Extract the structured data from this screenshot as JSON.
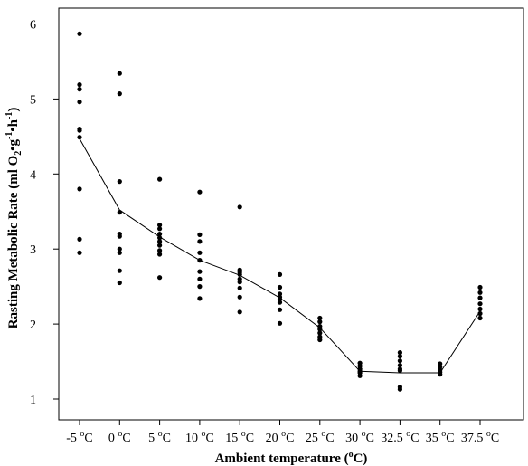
{
  "chart_data": {
    "type": "scatter",
    "title": "",
    "xlabel": "Ambient temperature (",
    "xlabel_sup": "o",
    "xlabel_end": "C)",
    "ylabel": "Rasting Metabolic Rate  (ml O",
    "ylabel_sub": "2",
    "ylabel_mid": "•g",
    "ylabel_sup1": "-1",
    "ylabel_mid2": "•h",
    "ylabel_sup2": "-1",
    "ylabel_end": ")",
    "ylim": [
      0.7,
      6.25
    ],
    "yticks": [
      1,
      2,
      3,
      4,
      5,
      6
    ],
    "grid": false,
    "categories": [
      {
        "num": "-5",
        "deg": "o",
        "unit": "C"
      },
      {
        "num": "0",
        "deg": "o",
        "unit": "C"
      },
      {
        "num": "5",
        "deg": "o",
        "unit": "C"
      },
      {
        "num": "10",
        "deg": "o",
        "unit": "C"
      },
      {
        "num": "15",
        "deg": "o",
        "unit": "C"
      },
      {
        "num": "20",
        "deg": "o",
        "unit": "C"
      },
      {
        "num": "25",
        "deg": "o",
        "unit": "C"
      },
      {
        "num": "30",
        "deg": "o",
        "unit": "C"
      },
      {
        "num": "32.5",
        "deg": "o",
        "unit": "C"
      },
      {
        "num": "35",
        "deg": "o",
        "unit": "C"
      },
      {
        "num": "37.5",
        "deg": "o",
        "unit": "C"
      }
    ],
    "points": [
      [
        5.87,
        5.19,
        5.13,
        4.96,
        4.6,
        4.58,
        4.49,
        3.8,
        3.13,
        2.95
      ],
      [
        5.34,
        5.07,
        3.9,
        3.49,
        3.2,
        3.17,
        3.0,
        2.95,
        2.71,
        2.55
      ],
      [
        3.93,
        3.32,
        3.27,
        3.2,
        3.15,
        3.1,
        3.05,
        2.98,
        2.93,
        2.62
      ],
      [
        3.76,
        3.19,
        3.1,
        2.95,
        2.85,
        2.7,
        2.6,
        2.5,
        2.34
      ],
      [
        3.56,
        2.72,
        2.69,
        2.66,
        2.6,
        2.56,
        2.48,
        2.36,
        2.16
      ],
      [
        2.66,
        2.49,
        2.4,
        2.36,
        2.33,
        2.29,
        2.19,
        2.01
      ],
      [
        2.08,
        2.03,
        1.97,
        1.93,
        1.88,
        1.83,
        1.79
      ],
      [
        1.48,
        1.44,
        1.4,
        1.37,
        1.35,
        1.31
      ],
      [
        1.62,
        1.57,
        1.51,
        1.45,
        1.4,
        1.38,
        1.16,
        1.13
      ],
      [
        1.47,
        1.43,
        1.39,
        1.36,
        1.33
      ],
      [
        2.49,
        2.42,
        2.35,
        2.27,
        2.2,
        2.14,
        2.08
      ]
    ],
    "series": [
      {
        "values": [
          4.47,
          3.52,
          3.16,
          2.85,
          2.65,
          2.35,
          1.95,
          1.37,
          1.35,
          1.35,
          2.17
        ]
      }
    ],
    "colors": {
      "points": "#000000",
      "line": "#000000",
      "axes": "#000000"
    }
  }
}
